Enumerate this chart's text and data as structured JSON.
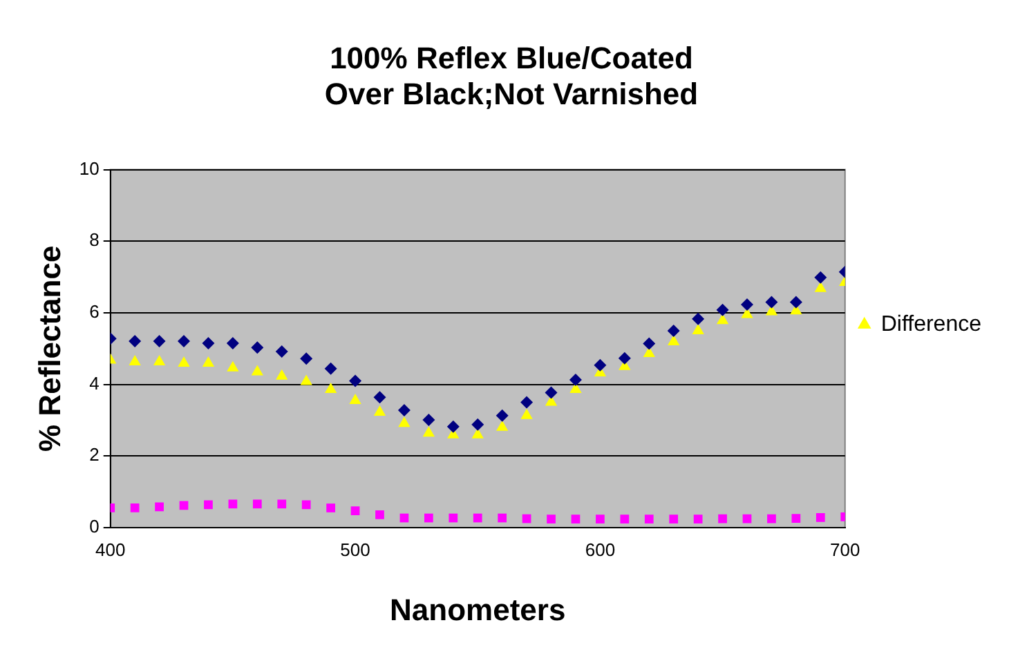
{
  "chart_data": {
    "type": "scatter",
    "title": "100% Reflex Blue/Coated\nOver Black;Not Varnished",
    "xlabel": "Nanometers",
    "ylabel": "% Reflectance",
    "x": [
      400,
      410,
      420,
      430,
      440,
      450,
      460,
      470,
      480,
      490,
      500,
      510,
      520,
      530,
      540,
      550,
      560,
      570,
      580,
      590,
      600,
      610,
      620,
      630,
      640,
      650,
      660,
      670,
      680,
      690,
      700
    ],
    "series": [
      {
        "color": "#000080",
        "marker": "diamond",
        "values": [
          5.28,
          5.21,
          5.21,
          5.21,
          5.15,
          5.15,
          5.03,
          4.92,
          4.72,
          4.44,
          4.1,
          3.64,
          3.28,
          3.01,
          2.82,
          2.88,
          3.13,
          3.5,
          3.77,
          4.13,
          4.54,
          4.73,
          5.14,
          5.5,
          5.83,
          6.08,
          6.23,
          6.3,
          6.3,
          6.99,
          7.14
        ]
      },
      {
        "color": "#ff00ff",
        "marker": "square",
        "values": [
          0.55,
          0.55,
          0.58,
          0.62,
          0.64,
          0.66,
          0.66,
          0.66,
          0.64,
          0.55,
          0.47,
          0.36,
          0.27,
          0.27,
          0.27,
          0.27,
          0.27,
          0.25,
          0.24,
          0.24,
          0.24,
          0.24,
          0.24,
          0.24,
          0.24,
          0.25,
          0.25,
          0.25,
          0.26,
          0.28,
          0.3
        ]
      },
      {
        "name": "Difference",
        "color": "#ffff00",
        "marker": "triangle",
        "values": [
          4.68,
          4.63,
          4.63,
          4.59,
          4.59,
          4.46,
          4.35,
          4.23,
          4.08,
          3.86,
          3.55,
          3.22,
          2.91,
          2.64,
          2.59,
          2.59,
          2.8,
          3.13,
          3.5,
          3.86,
          4.32,
          4.5,
          4.86,
          5.19,
          5.5,
          5.78,
          5.95,
          6.03,
          6.05,
          6.68,
          6.85
        ]
      }
    ],
    "xlim": [
      400,
      700
    ],
    "xticks": [
      400,
      500,
      600,
      700
    ],
    "ylim": [
      0,
      10
    ],
    "yticks": [
      0,
      2,
      4,
      6,
      8,
      10
    ],
    "grid": "y",
    "legend": "right"
  }
}
